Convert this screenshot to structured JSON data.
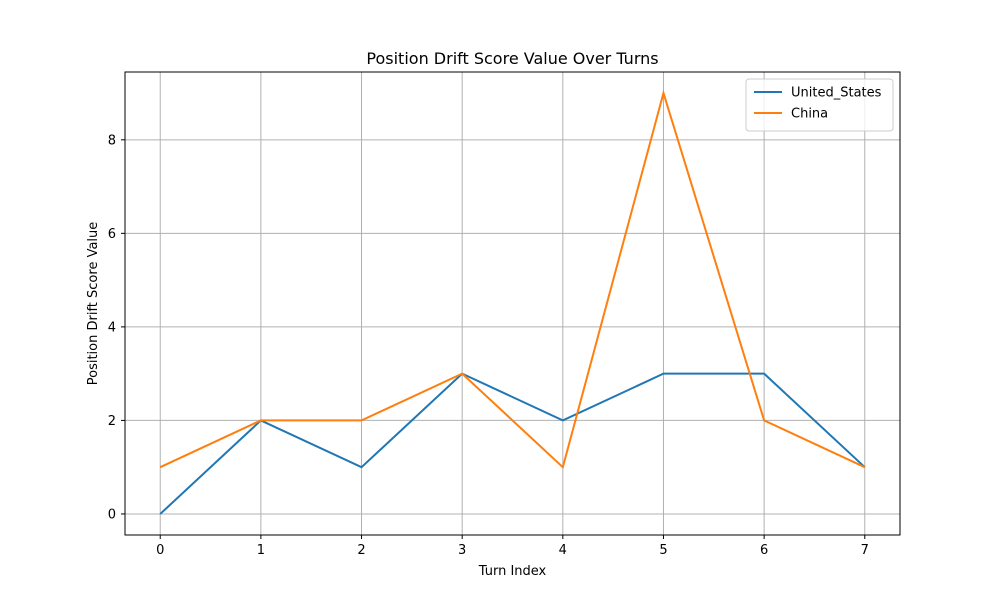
{
  "chart_data": {
    "type": "line",
    "title": "Position Drift Score Value Over Turns",
    "xlabel": "Turn Index",
    "ylabel": "Position Drift Score Value",
    "x": [
      0,
      1,
      2,
      3,
      4,
      5,
      6,
      7
    ],
    "xticks": [
      "0",
      "1",
      "2",
      "3",
      "4",
      "5",
      "6",
      "7"
    ],
    "yticks": [
      "0",
      "2",
      "4",
      "6",
      "8"
    ],
    "xlim": [
      -0.35,
      7.35
    ],
    "ylim": [
      -0.45,
      9.45
    ],
    "grid": true,
    "legend_position": "top-right",
    "series": [
      {
        "name": "United_States",
        "color": "#1f77b4",
        "values": [
          0,
          2,
          1,
          3,
          2,
          3,
          3,
          1
        ]
      },
      {
        "name": "China",
        "color": "#ff7f0e",
        "values": [
          1,
          2,
          2,
          3,
          1,
          9,
          2,
          1
        ]
      }
    ]
  }
}
